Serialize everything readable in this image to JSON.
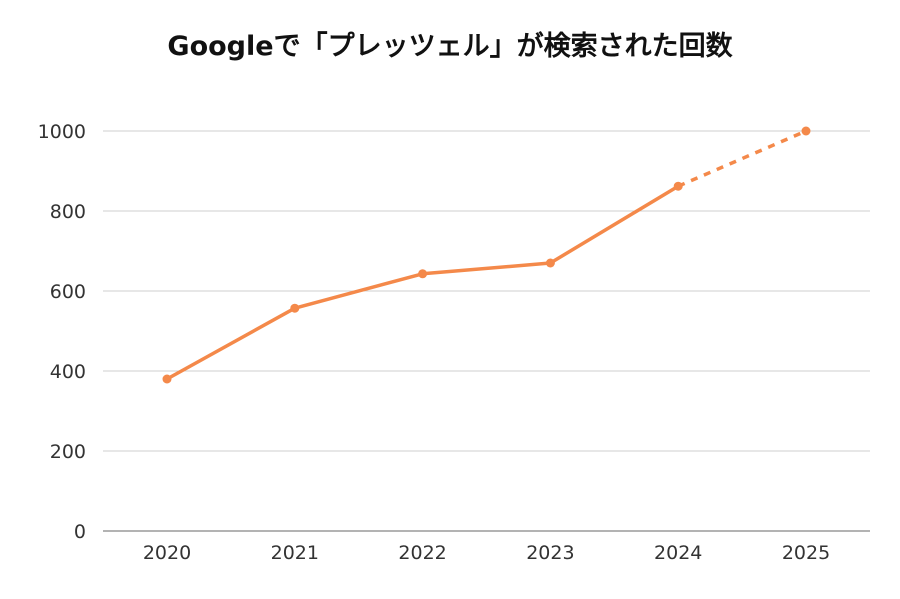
{
  "chart_data": {
    "type": "line",
    "title": "Googleで「プレッツェル」が検索された回数",
    "xlabel": "",
    "ylabel": "",
    "categories": [
      "2020",
      "2021",
      "2022",
      "2023",
      "2024",
      "2025"
    ],
    "series": [
      {
        "values": [
          380,
          557,
          643,
          670,
          862,
          1000
        ],
        "color": "#f4894a",
        "projected_from_index": 4
      }
    ],
    "ylim": [
      0,
      1000
    ],
    "yticks": [
      0,
      200,
      400,
      600,
      800,
      1000
    ],
    "grid": true,
    "legend": "none"
  }
}
